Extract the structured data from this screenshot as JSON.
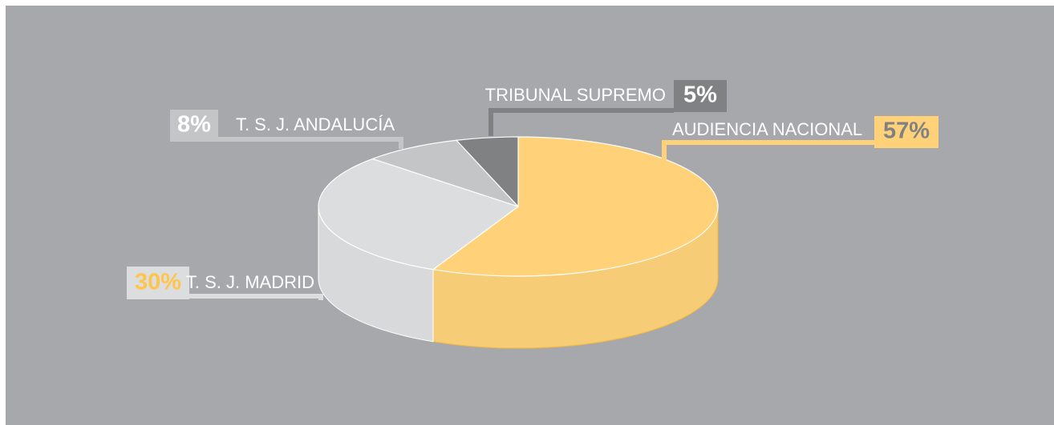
{
  "chart_data": {
    "type": "pie3d",
    "categories": [
      "AUDIENCIA NACIONAL",
      "T. S. J. MADRID",
      "T. S. J. ANDALUCÍA",
      "TRIBUNAL SUPREMO"
    ],
    "values": [
      57,
      30,
      8,
      5
    ],
    "value_labels": [
      "57%",
      "30%",
      "8%",
      "5%"
    ],
    "colors": [
      "#ffd27a",
      "#dcdddf",
      "#c4c5c7",
      "#808183"
    ]
  }
}
